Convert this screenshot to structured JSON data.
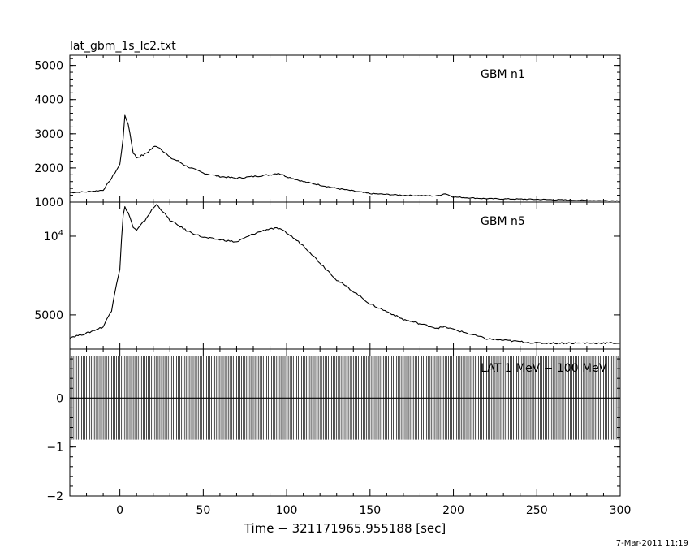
{
  "title": "lat_gbm_1s_lc2.txt",
  "footer": "7-Mar-2011 11:19",
  "chart_data": {
    "type": "line",
    "x": {
      "label": "Time − 321171965.955188 [sec]",
      "range": [
        -30,
        300
      ],
      "ticks": [
        0,
        50,
        100,
        150,
        200,
        250,
        300
      ]
    },
    "panels": [
      {
        "name": "GBM n1",
        "scale": "linear",
        "ylim": [
          1000,
          5300
        ],
        "yticks": [
          1000,
          2000,
          3000,
          4000,
          5000
        ],
        "ytick_labels": [
          "1000",
          "2000",
          "3000",
          "4000",
          "5000"
        ],
        "series": [
          {
            "x": [
              -30,
              -20,
              -10,
              -5,
              0,
              2,
              3,
              5,
              8,
              10,
              15,
              20,
              22,
              25,
              30,
              35,
              40,
              50,
              60,
              70,
              80,
              90,
              95,
              100,
              110,
              120,
              130,
              150,
              170,
              190,
              195,
              200,
              220,
              250,
              280,
              300
            ],
            "y": [
              1280,
              1300,
              1350,
              1700,
              2100,
              2900,
              3500,
              3300,
              2450,
              2300,
              2400,
              2600,
              2650,
              2550,
              2300,
              2200,
              2050,
              1850,
              1750,
              1700,
              1750,
              1800,
              1850,
              1750,
              1600,
              1500,
              1400,
              1250,
              1200,
              1180,
              1250,
              1150,
              1100,
              1080,
              1050,
              1040
            ]
          }
        ]
      },
      {
        "name": "GBM n5",
        "scale": "log",
        "ylim": [
          3700,
          13500
        ],
        "yticks": [
          5000,
          10000
        ],
        "ytick_labels": [
          "5000",
          "10^4"
        ],
        "series": [
          {
            "x": [
              -30,
              -20,
              -10,
              -5,
              0,
              2,
              3,
              5,
              8,
              10,
              15,
              20,
              22,
              25,
              30,
              35,
              40,
              50,
              60,
              70,
              80,
              90,
              95,
              100,
              110,
              120,
              130,
              150,
              170,
              190,
              195,
              200,
              220,
              250,
              280,
              300
            ],
            "y": [
              4100,
              4250,
              4500,
              5200,
              7500,
              12000,
              12900,
              12300,
              10800,
              10500,
              11500,
              12800,
              13200,
              12600,
              11500,
              11000,
              10500,
              9900,
              9700,
              9500,
              10200,
              10700,
              10700,
              10300,
              9200,
              7900,
              6800,
              5500,
              4800,
              4450,
              4500,
              4400,
              4050,
              3900,
              3900,
              3900
            ]
          }
        ]
      },
      {
        "name": "LAT 1 MeV − 100 MeV",
        "scale": "linear",
        "ylim": [
          -2,
          1
        ],
        "yticks": [
          -2,
          -1,
          0
        ],
        "ytick_labels": [
          "−2",
          "−1",
          "0"
        ],
        "series": [
          {
            "x": [
              -30,
              300
            ],
            "y": [
              0,
              0
            ]
          }
        ],
        "error_bar": [
          -0.85,
          0.85
        ],
        "error_bar_step": 1
      }
    ]
  }
}
